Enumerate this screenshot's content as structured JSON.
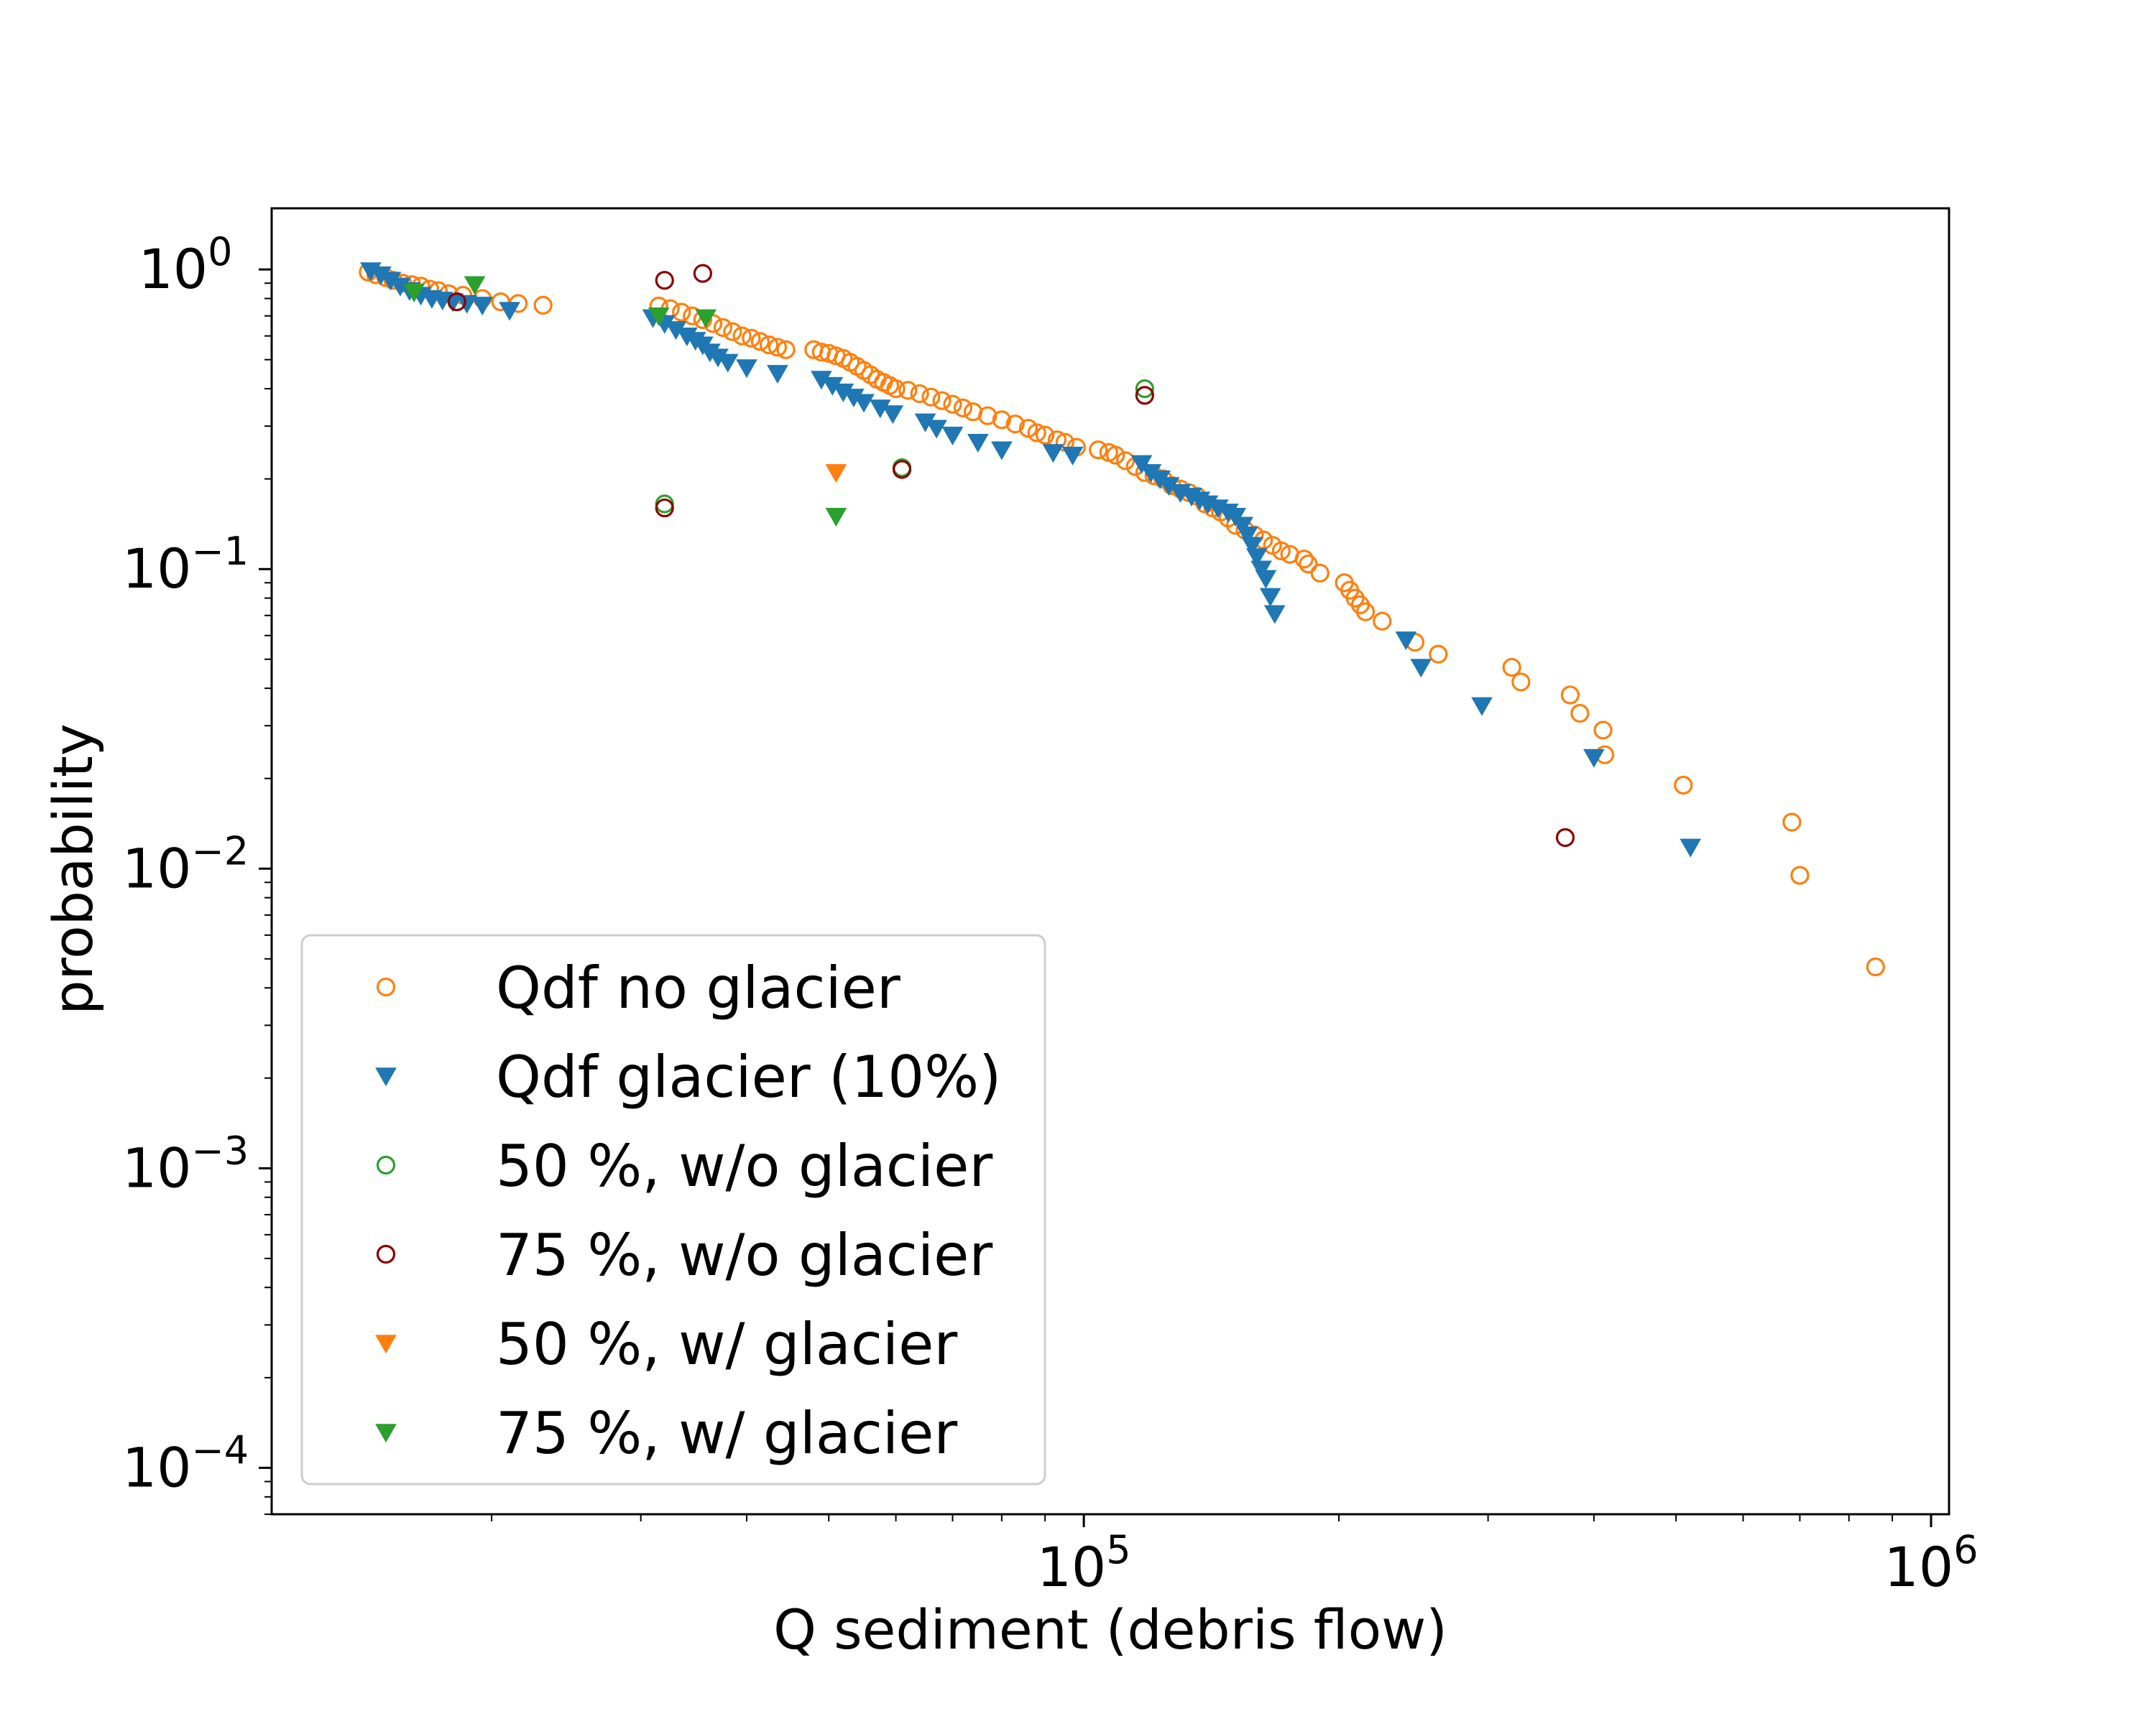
{
  "chart_data": {
    "type": "scatter",
    "title": "",
    "xlabel": "Q sediment (debris flow)",
    "ylabel": "probability",
    "xscale": "log",
    "yscale": "log",
    "xlim": [
      11000,
      1050000
    ],
    "ylim": [
      7e-05,
      1.6
    ],
    "grid": false,
    "legend_position": "lower-left",
    "x_ticks": [
      {
        "value": 100000,
        "base": "10",
        "exp": "5"
      },
      {
        "value": 1000000,
        "base": "10",
        "exp": "6"
      }
    ],
    "y_ticks": [
      {
        "value": 1,
        "base": "10",
        "exp": "0"
      },
      {
        "value": 0.1,
        "base": "10",
        "exp": "−1"
      },
      {
        "value": 0.01,
        "base": "10",
        "exp": "−2"
      },
      {
        "value": 0.001,
        "base": "10",
        "exp": "−3"
      },
      {
        "value": 0.0001,
        "base": "10",
        "exp": "−4"
      }
    ],
    "series": [
      {
        "name": "Qdf no glacier",
        "marker": "circle-open",
        "color": "#ff7f0e",
        "x": [
          14300,
          14600,
          15000,
          15300,
          15700,
          16100,
          16500,
          16900,
          17300,
          17800,
          18500,
          19500,
          20500,
          21500,
          23000,
          31500,
          32500,
          33500,
          34500,
          35500,
          36500,
          37500,
          38500,
          39500,
          40500,
          41500,
          42500,
          43500,
          44500,
          48000,
          49000,
          50000,
          51000,
          52000,
          53000,
          54000,
          55000,
          56000,
          57000,
          58000,
          59000,
          60000,
          62000,
          64000,
          66000,
          68000,
          70000,
          72000,
          74000,
          77000,
          80000,
          83000,
          86000,
          88000,
          90000,
          93000,
          95000,
          98000,
          104000,
          107000,
          109000,
          112000,
          115000,
          118000,
          121000,
          124000,
          127000,
          130000,
          133000,
          136000,
          139000,
          142000,
          145000,
          148000,
          151000,
          155000,
          159000,
          163000,
          167000,
          171000,
          175000,
          182000,
          184000,
          190000,
          203000,
          206000,
          209000,
          212000,
          215000,
          225000,
          246000,
          262000,
          320000,
          328000,
          375000,
          385000,
          410000,
          412000,
          510000,
          685000,
          700000,
          860000
        ],
        "y": [
          0.98,
          0.96,
          0.94,
          0.92,
          0.9,
          0.89,
          0.88,
          0.86,
          0.85,
          0.83,
          0.82,
          0.8,
          0.78,
          0.77,
          0.76,
          0.755,
          0.74,
          0.72,
          0.7,
          0.68,
          0.66,
          0.64,
          0.62,
          0.6,
          0.59,
          0.575,
          0.56,
          0.55,
          0.54,
          0.54,
          0.53,
          0.525,
          0.515,
          0.505,
          0.49,
          0.475,
          0.46,
          0.445,
          0.43,
          0.42,
          0.41,
          0.4,
          0.395,
          0.385,
          0.375,
          0.365,
          0.355,
          0.345,
          0.335,
          0.325,
          0.315,
          0.305,
          0.295,
          0.285,
          0.28,
          0.27,
          0.265,
          0.255,
          0.25,
          0.245,
          0.24,
          0.23,
          0.22,
          0.21,
          0.205,
          0.2,
          0.19,
          0.185,
          0.18,
          0.175,
          0.165,
          0.16,
          0.155,
          0.148,
          0.14,
          0.135,
          0.13,
          0.125,
          0.12,
          0.115,
          0.112,
          0.108,
          0.104,
          0.097,
          0.09,
          0.085,
          0.08,
          0.076,
          0.072,
          0.067,
          0.057,
          0.052,
          0.047,
          0.042,
          0.038,
          0.033,
          0.029,
          0.024,
          0.019,
          0.0143,
          0.0095,
          0.0047
        ]
      },
      {
        "name": "Qdf glacier (10%)",
        "marker": "triangle-down",
        "color": "#1f77b4",
        "x": [
          14400,
          14800,
          15200,
          15600,
          16000,
          16500,
          17000,
          17500,
          18000,
          18700,
          19500,
          21000,
          31000,
          32000,
          33000,
          34000,
          34800,
          35500,
          36200,
          37000,
          38000,
          40000,
          43500,
          49000,
          50500,
          52000,
          53500,
          55000,
          57500,
          59500,
          65000,
          67000,
          70000,
          75000,
          80000,
          92000,
          97000,
          117000,
          120000,
          123000,
          126000,
          130000,
          134000,
          137000,
          140000,
          144000,
          148000,
          151000,
          154000,
          156000,
          158000,
          160000,
          162000,
          164000,
          166000,
          168000,
          240000,
          250000,
          295000,
          400000,
          520000
        ],
        "y": [
          0.99,
          0.96,
          0.92,
          0.88,
          0.85,
          0.82,
          0.8,
          0.79,
          0.78,
          0.77,
          0.76,
          0.73,
          0.69,
          0.66,
          0.63,
          0.6,
          0.58,
          0.56,
          0.53,
          0.51,
          0.49,
          0.47,
          0.45,
          0.43,
          0.41,
          0.39,
          0.375,
          0.36,
          0.345,
          0.33,
          0.31,
          0.295,
          0.28,
          0.265,
          0.25,
          0.245,
          0.24,
          0.225,
          0.21,
          0.2,
          0.19,
          0.18,
          0.175,
          0.17,
          0.165,
          0.16,
          0.155,
          0.15,
          0.14,
          0.13,
          0.12,
          0.11,
          0.1,
          0.093,
          0.081,
          0.071,
          0.058,
          0.047,
          0.035,
          0.0235,
          0.0118
        ]
      },
      {
        "name": "50 %, w/o glacier",
        "marker": "circle-open",
        "color": "#2ca02c",
        "x": [
          32000,
          61000,
          118000
        ],
        "y": [
          0.165,
          0.218,
          0.4
        ]
      },
      {
        "name": "75 %, w/o glacier",
        "marker": "circle-open",
        "color": "#8b0000",
        "x": [
          18200,
          32000,
          35500,
          32000,
          61000,
          118000,
          370000
        ],
        "y": [
          0.78,
          0.92,
          0.97,
          0.16,
          0.215,
          0.38,
          0.0127
        ]
      },
      {
        "name": "50 %, w/ glacier",
        "marker": "triangle-down",
        "color": "#ff7f0e",
        "x": [
          51000
        ],
        "y": [
          0.21
        ]
      },
      {
        "name": "75 %, w/ glacier",
        "marker": "triangle-down",
        "color": "#2ca02c",
        "x": [
          16200,
          19100,
          31500,
          35800,
          51000
        ],
        "y": [
          0.84,
          0.89,
          0.7,
          0.69,
          0.15
        ]
      }
    ]
  }
}
